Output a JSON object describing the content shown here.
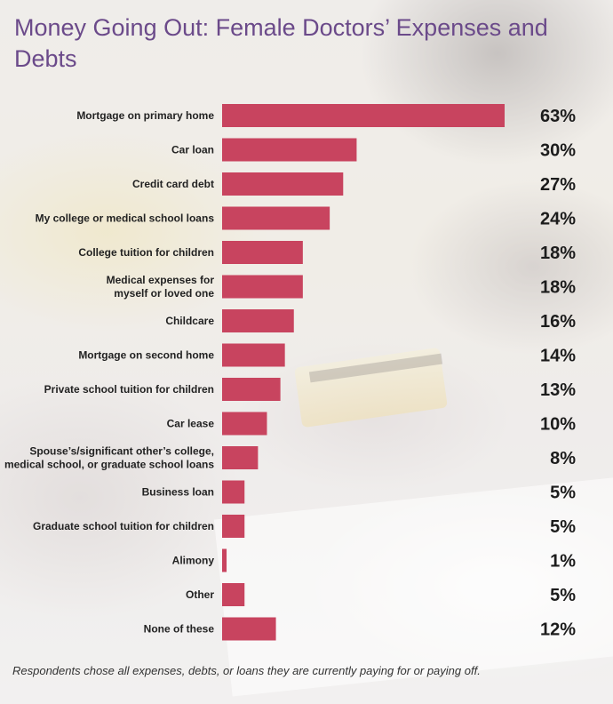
{
  "chart_data": {
    "type": "bar",
    "orientation": "horizontal",
    "title": "Money Going Out: Female Doctors’ Expenses and Debts",
    "categories": [
      [
        "Mortgage on primary home"
      ],
      [
        "Car loan"
      ],
      [
        "Credit card debt"
      ],
      [
        "My college or medical school loans"
      ],
      [
        "College tuition for children"
      ],
      [
        "Medical expenses for",
        "myself or loved one"
      ],
      [
        "Childcare"
      ],
      [
        "Mortgage on second home"
      ],
      [
        "Private school tuition for children"
      ],
      [
        "Car lease"
      ],
      [
        "Spouse’s/significant other’s college,",
        "medical school, or graduate school loans"
      ],
      [
        "Business loan"
      ],
      [
        "Graduate school tuition for children"
      ],
      [
        "Alimony"
      ],
      [
        "Other"
      ],
      [
        "None of these"
      ]
    ],
    "values": [
      63,
      30,
      27,
      24,
      18,
      18,
      16,
      14,
      13,
      10,
      8,
      5,
      5,
      1,
      5,
      12
    ],
    "value_labels": [
      "63%",
      "30%",
      "27%",
      "24%",
      "18%",
      "18%",
      "16%",
      "14%",
      "13%",
      "10%",
      "8%",
      "5%",
      "5%",
      "1%",
      "5%",
      "12%"
    ],
    "xlim": [
      0,
      63
    ],
    "grid": false,
    "legend": "none",
    "bar_color": "#c8445f",
    "title_color": "#6b4a8a",
    "footnote": "Respondents chose all expenses, debts, or loans they are currently paying for or paying off."
  }
}
